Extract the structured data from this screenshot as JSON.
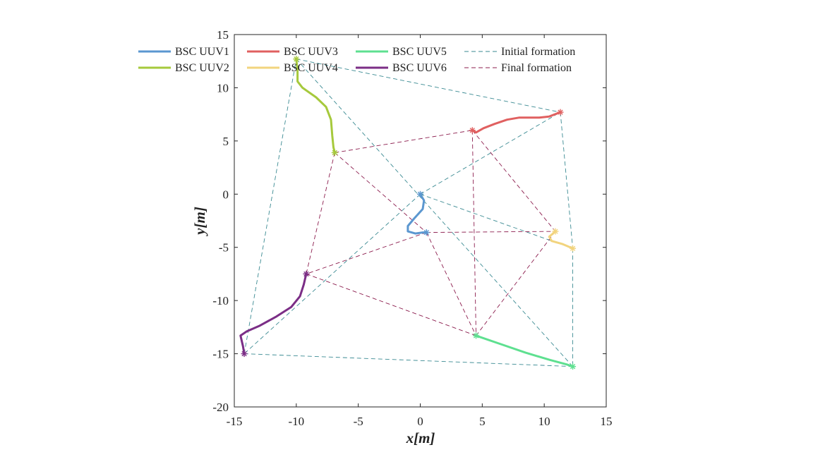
{
  "chart_data": {
    "type": "line",
    "xlabel": "x[m]",
    "ylabel": "y[m]",
    "xlim": [
      -15,
      15
    ],
    "ylim": [
      -20,
      15
    ],
    "xticks": [
      -15,
      -10,
      -5,
      0,
      5,
      10,
      15
    ],
    "yticks": [
      15,
      10,
      5,
      0,
      -5,
      -10,
      -15,
      -20
    ],
    "series": [
      {
        "name": "BSC UUV1",
        "color": "#5b97d0",
        "points": [
          [
            0,
            0
          ],
          [
            0.3,
            -0.6
          ],
          [
            0.2,
            -1.4
          ],
          [
            -0.5,
            -2.3
          ],
          [
            -1.0,
            -3.0
          ],
          [
            -1.0,
            -3.5
          ],
          [
            -0.4,
            -3.7
          ],
          [
            0.2,
            -3.6
          ],
          [
            0.5,
            -3.6
          ]
        ]
      },
      {
        "name": "BSC UUV2",
        "color": "#a6c93c",
        "points": [
          [
            -10.0,
            12.7
          ],
          [
            -9.9,
            11.6
          ],
          [
            -9.9,
            10.6
          ],
          [
            -9.5,
            10.0
          ],
          [
            -8.4,
            9.1
          ],
          [
            -7.6,
            8.2
          ],
          [
            -7.2,
            7.0
          ],
          [
            -7.1,
            5.5
          ],
          [
            -7.0,
            4.4
          ],
          [
            -6.9,
            3.9
          ]
        ]
      },
      {
        "name": "BSC UUV3",
        "color": "#e06060",
        "points": [
          [
            11.3,
            7.7
          ],
          [
            10.4,
            7.3
          ],
          [
            9.6,
            7.2
          ],
          [
            8.0,
            7.2
          ],
          [
            7.0,
            7.0
          ],
          [
            6.0,
            6.6
          ],
          [
            5.1,
            6.2
          ],
          [
            4.5,
            5.8
          ],
          [
            4.2,
            6.0
          ]
        ]
      },
      {
        "name": "BSC UUV4",
        "color": "#f2d47e",
        "points": [
          [
            12.3,
            -5.1
          ],
          [
            11.5,
            -4.7
          ],
          [
            10.6,
            -4.4
          ],
          [
            10.4,
            -4.0
          ],
          [
            10.7,
            -3.7
          ],
          [
            10.9,
            -3.5
          ]
        ]
      },
      {
        "name": "BSC UUV5",
        "color": "#5ee090",
        "points": [
          [
            12.3,
            -16.2
          ],
          [
            11.8,
            -16.0
          ],
          [
            10.5,
            -15.6
          ],
          [
            8.5,
            -14.9
          ],
          [
            6.5,
            -14.1
          ],
          [
            5.0,
            -13.5
          ],
          [
            4.5,
            -13.3
          ]
        ]
      },
      {
        "name": "BSC UUV6",
        "color": "#7b2e86",
        "points": [
          [
            -14.2,
            -15.0
          ],
          [
            -14.3,
            -14.3
          ],
          [
            -14.5,
            -13.3
          ],
          [
            -14.0,
            -12.9
          ],
          [
            -13.0,
            -12.4
          ],
          [
            -11.6,
            -11.5
          ],
          [
            -10.4,
            -10.6
          ],
          [
            -9.7,
            -9.6
          ],
          [
            -9.4,
            -8.5
          ],
          [
            -9.2,
            -7.5
          ]
        ]
      }
    ],
    "initial_formation": {
      "label": "Initial formation",
      "color": "#3a8a92",
      "nodes": {
        "UUV1": [
          0,
          0
        ],
        "UUV2": [
          -10.0,
          12.7
        ],
        "UUV3": [
          11.3,
          7.7
        ],
        "UUV4": [
          12.3,
          -5.1
        ],
        "UUV5": [
          12.3,
          -16.2
        ],
        "UUV6": [
          -14.2,
          -15.0
        ]
      },
      "edges": [
        [
          "UUV2",
          "UUV3"
        ],
        [
          "UUV3",
          "UUV4"
        ],
        [
          "UUV4",
          "UUV5"
        ],
        [
          "UUV5",
          "UUV6"
        ],
        [
          "UUV6",
          "UUV2"
        ],
        [
          "UUV1",
          "UUV3"
        ],
        [
          "UUV1",
          "UUV4"
        ],
        [
          "UUV1",
          "UUV6"
        ],
        [
          "UUV2",
          "UUV5"
        ]
      ]
    },
    "final_formation": {
      "label": "Final formation",
      "color": "#8c1d4e",
      "nodes": {
        "UUV1": [
          0.5,
          -3.6
        ],
        "UUV2": [
          -6.9,
          3.9
        ],
        "UUV3": [
          4.2,
          6.0
        ],
        "UUV4": [
          10.9,
          -3.5
        ],
        "UUV5": [
          4.5,
          -13.3
        ],
        "UUV6": [
          -9.2,
          -7.5
        ]
      },
      "edges": [
        [
          "UUV2",
          "UUV3"
        ],
        [
          "UUV2",
          "UUV6"
        ],
        [
          "UUV2",
          "UUV1"
        ],
        [
          "UUV3",
          "UUV4"
        ],
        [
          "UUV3",
          "UUV5"
        ],
        [
          "UUV1",
          "UUV4"
        ],
        [
          "UUV1",
          "UUV6"
        ],
        [
          "UUV1",
          "UUV5"
        ],
        [
          "UUV4",
          "UUV5"
        ],
        [
          "UUV6",
          "UUV5"
        ]
      ]
    },
    "legend": {
      "placement": "top",
      "entries": [
        {
          "label": "BSC UUV1",
          "style": "solid",
          "color": "#5b97d0"
        },
        {
          "label": "BSC UUV2",
          "style": "solid",
          "color": "#a6c93c"
        },
        {
          "label": "BSC UUV3",
          "style": "solid",
          "color": "#e06060"
        },
        {
          "label": "BSC UUV4",
          "style": "solid",
          "color": "#f2d47e"
        },
        {
          "label": "BSC UUV5",
          "style": "solid",
          "color": "#5ee090"
        },
        {
          "label": "BSC UUV6",
          "style": "solid",
          "color": "#7b2e86"
        },
        {
          "label": "Initial formation",
          "style": "dashed",
          "color": "#3a8a92"
        },
        {
          "label": "Final formation",
          "style": "dashed",
          "color": "#8c1d4e"
        }
      ]
    }
  }
}
